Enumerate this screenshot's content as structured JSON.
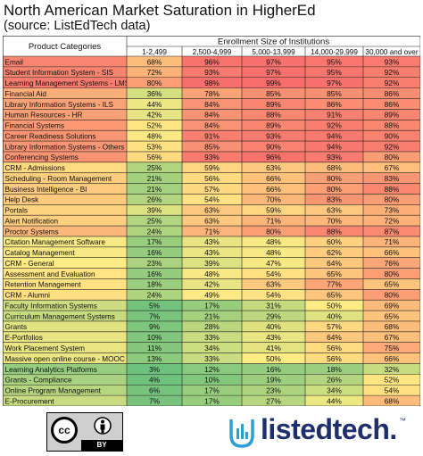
{
  "title": "North American Market Saturation in HigherEd",
  "subtitle": "(source: ListEdTech data)",
  "chart_data": {
    "type": "table",
    "header_group": "Enrollment Size of Institutions",
    "row_header": "Product Categories",
    "columns": [
      "1-2,499",
      "2,500-4,999",
      "5,000-13,999",
      "14,000-29,999",
      "30,000 and over"
    ],
    "rows": [
      {
        "category": "Email",
        "values": [
          "68%",
          "96%",
          "97%",
          "95%",
          "93%"
        ]
      },
      {
        "category": "Student Information System - SIS",
        "values": [
          "72%",
          "93%",
          "97%",
          "95%",
          "92%"
        ]
      },
      {
        "category": "Learning Management Systems - LMS",
        "values": [
          "80%",
          "98%",
          "99%",
          "97%",
          "92%"
        ]
      },
      {
        "category": "Financial Aid",
        "values": [
          "36%",
          "78%",
          "85%",
          "85%",
          "86%"
        ]
      },
      {
        "category": "Library Information Systems - ILS",
        "values": [
          "44%",
          "84%",
          "89%",
          "86%",
          "86%"
        ]
      },
      {
        "category": "Human Resources - HR",
        "values": [
          "42%",
          "84%",
          "88%",
          "91%",
          "89%"
        ]
      },
      {
        "category": "Financial Systems",
        "values": [
          "52%",
          "84%",
          "89%",
          "92%",
          "88%"
        ]
      },
      {
        "category": "Career Readiness Solutions",
        "values": [
          "48%",
          "91%",
          "93%",
          "94%",
          "90%"
        ]
      },
      {
        "category": "Library Information Systems - Others",
        "values": [
          "53%",
          "85%",
          "90%",
          "94%",
          "92%"
        ]
      },
      {
        "category": "Conferencing Systems",
        "values": [
          "56%",
          "93%",
          "96%",
          "93%",
          "80%"
        ]
      },
      {
        "category": "CRM - Admissions",
        "values": [
          "25%",
          "59%",
          "63%",
          "68%",
          "67%"
        ]
      },
      {
        "category": "Scheduling - Room Management",
        "values": [
          "21%",
          "56%",
          "66%",
          "80%",
          "83%"
        ]
      },
      {
        "category": "Business Intelligence - BI",
        "values": [
          "21%",
          "57%",
          "66%",
          "80%",
          "88%"
        ]
      },
      {
        "category": "Help Desk",
        "values": [
          "26%",
          "54%",
          "70%",
          "83%",
          "80%"
        ]
      },
      {
        "category": "Portals",
        "values": [
          "39%",
          "63%",
          "59%",
          "63%",
          "73%"
        ]
      },
      {
        "category": "Alert Notification",
        "values": [
          "25%",
          "63%",
          "71%",
          "70%",
          "72%"
        ]
      },
      {
        "category": "Proctor Systems",
        "values": [
          "24%",
          "71%",
          "80%",
          "88%",
          "87%"
        ]
      },
      {
        "category": "Citation Management Software",
        "values": [
          "17%",
          "43%",
          "48%",
          "60%",
          "71%"
        ]
      },
      {
        "category": "Catalog Management",
        "values": [
          "16%",
          "43%",
          "48%",
          "62%",
          "66%"
        ]
      },
      {
        "category": "CRM - General",
        "values": [
          "23%",
          "39%",
          "47%",
          "64%",
          "76%"
        ]
      },
      {
        "category": "Assessment and Evaluation",
        "values": [
          "16%",
          "48%",
          "54%",
          "65%",
          "80%"
        ]
      },
      {
        "category": "Retention Management",
        "values": [
          "18%",
          "42%",
          "63%",
          "77%",
          "65%"
        ]
      },
      {
        "category": "CRM - Alumni",
        "values": [
          "24%",
          "49%",
          "54%",
          "65%",
          "80%"
        ]
      },
      {
        "category": "Faculty Information Systems",
        "values": [
          "5%",
          "17%",
          "31%",
          "50%",
          "69%"
        ]
      },
      {
        "category": "Curriculum Management Systems",
        "values": [
          "7%",
          "21%",
          "29%",
          "40%",
          "65%"
        ]
      },
      {
        "category": "Grants",
        "values": [
          "9%",
          "28%",
          "40%",
          "57%",
          "68%"
        ]
      },
      {
        "category": "E-Portfolios",
        "values": [
          "10%",
          "33%",
          "43%",
          "64%",
          "67%"
        ]
      },
      {
        "category": "Work Placement System",
        "values": [
          "11%",
          "34%",
          "41%",
          "56%",
          "75%"
        ]
      },
      {
        "category": "Massive open online course - MOOC",
        "values": [
          "13%",
          "33%",
          "50%",
          "56%",
          "66%"
        ]
      },
      {
        "category": "Learning Analytics Platforms",
        "values": [
          "3%",
          "12%",
          "16%",
          "18%",
          "32%"
        ]
      },
      {
        "category": "Grants - Compliance",
        "values": [
          "4%",
          "10%",
          "19%",
          "26%",
          "52%"
        ]
      },
      {
        "category": "Online Program Management",
        "values": [
          "6%",
          "17%",
          "23%",
          "34%",
          "54%"
        ]
      },
      {
        "category": "E-Procurement",
        "values": [
          "7%",
          "17%",
          "27%",
          "44%",
          "68%"
        ]
      }
    ],
    "color_scale": {
      "low": "#63be7b",
      "mid": "#ffeb84",
      "high": "#f8696b"
    }
  },
  "footer": {
    "license_cc": "cc",
    "license_by": "BY",
    "logo_text": "listedtech.",
    "logo_mark": "™",
    "icons": [
      "creative-commons-icon",
      "person-icon",
      "listedtech-logo-icon"
    ]
  }
}
